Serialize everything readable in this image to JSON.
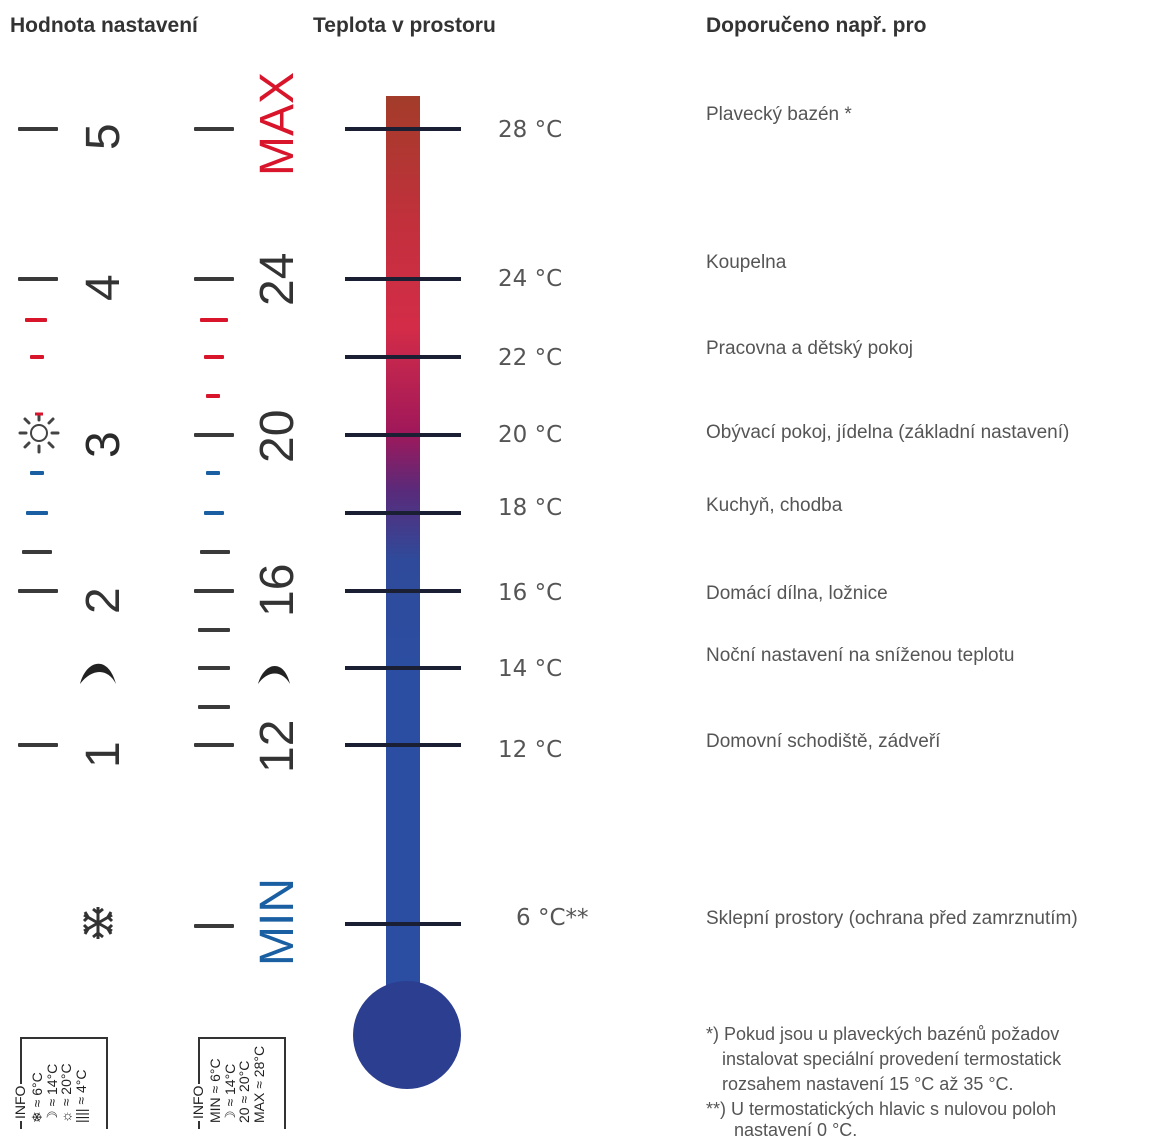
{
  "headers": {
    "setting": "Hodnota nastavení",
    "room_temp": "Teplota v prostoru",
    "recommended": "Doporučeno např. pro"
  },
  "scale_left": {
    "numbers": [
      "5",
      "4",
      "3",
      "2",
      "1"
    ],
    "sun_icon": "sun-icon",
    "moon_icon": "moon-icon",
    "snow_icon": "snowflake-icon"
  },
  "scale_right": {
    "max": "MAX",
    "min": "MIN",
    "numbers": [
      "24",
      "20",
      "16",
      "12"
    ],
    "max_color": "#d9152c",
    "min_color": "#1b5fa3"
  },
  "temperatures": [
    "28 °C",
    "24 °C",
    "22 °C",
    "20 °C",
    "18 °C",
    "16 °C",
    "14 °C",
    "12 °C",
    "6 °C**"
  ],
  "recommendations": [
    "Plavecký bazén *",
    "Koupelna",
    "Pracovna a dětský pokoj",
    "Obývací pokoj, jídelna (základní nastavení)",
    "Kuchyň, chodba",
    "Domácí dílna, ložnice",
    "Noční nastavení na sníženou teplotu",
    "Domovní schodiště, zádveří",
    "Sklepní prostory (ochrana před zamrznutím)"
  ],
  "notes": [
    "*) Pokud jsou u plaveckých bazénů požadov",
    "instalovat speciální provedení termostatick",
    "rozsahem nastavení 15 °C až 35 °C.",
    "**) U termostatických hlavic s nulovou poloh",
    "nastavení 0 °C."
  ],
  "info_left": {
    "title": "INFO",
    "rows": [
      "❄ ≈ 6°C",
      "☽ ≈ 14°C",
      "☼ ≈ 20°C",
      "|||| ≈ 4°C"
    ]
  },
  "info_right": {
    "title": "INFO",
    "rows": [
      "MIN ≈ 6°C",
      "☽ ≈ 14°C",
      "20 ≈ 20°C",
      "MAX ≈ 28°C"
    ]
  },
  "colors": {
    "red": "#d9152c",
    "blue": "#1b5fa3",
    "bulb": "#2c3e8f"
  }
}
